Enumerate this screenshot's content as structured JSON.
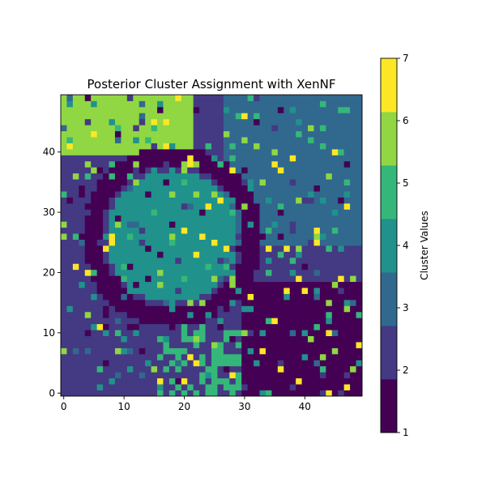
{
  "chart_data": {
    "type": "heatmap",
    "title": "Posterior Cluster Assignment with XenNF",
    "xlabel": "",
    "ylabel": "",
    "grid_size": [
      50,
      50
    ],
    "xlim": [
      -0.5,
      49.5
    ],
    "ylim": [
      -0.5,
      49.5
    ],
    "origin": "lower",
    "x_ticks": [
      0,
      10,
      20,
      30,
      40
    ],
    "y_ticks": [
      0,
      10,
      20,
      30,
      40
    ],
    "colormap": "viridis",
    "clusters": [
      1,
      2,
      3,
      4,
      5,
      6,
      7
    ],
    "cluster_colors": [
      "#440154",
      "#443983",
      "#31688e",
      "#21918c",
      "#35b779",
      "#90d743",
      "#fde725"
    ],
    "colorbar": {
      "label": "Cluster Values",
      "ticks": [
        1,
        2,
        3,
        4,
        5,
        6,
        7
      ],
      "range": [
        1,
        7
      ],
      "segments": [
        {
          "from": 1.0,
          "to": 1.857,
          "color": "#440154"
        },
        {
          "from": 1.857,
          "to": 2.714,
          "color": "#443983"
        },
        {
          "from": 2.714,
          "to": 3.571,
          "color": "#31688e"
        },
        {
          "from": 3.571,
          "to": 4.429,
          "color": "#21918c"
        },
        {
          "from": 4.429,
          "to": 5.286,
          "color": "#35b779"
        },
        {
          "from": 5.286,
          "to": 6.143,
          "color": "#90d743"
        },
        {
          "from": 6.143,
          "to": 7.0,
          "color": "#fde725"
        }
      ]
    },
    "regions": [
      {
        "name": "ring",
        "cluster": 1,
        "center": [
          18,
          26
        ],
        "inner_radius": 12,
        "outer_radius": 15
      },
      {
        "name": "disc",
        "cluster": 4,
        "center": [
          18,
          26
        ],
        "radius": 11
      },
      {
        "name": "upper-left-block",
        "cluster": 6,
        "x_range": [
          0,
          21
        ],
        "y_range": [
          40,
          49
        ]
      },
      {
        "name": "upper-right-block",
        "cluster": 3,
        "x_range": [
          27,
          49
        ],
        "y_range": [
          25,
          49
        ]
      },
      {
        "name": "lower-right-block",
        "cluster": 1,
        "x_range": [
          30,
          49
        ],
        "y_range": [
          0,
          18
        ]
      },
      {
        "name": "bottom-patch",
        "cluster": 5,
        "x_range": [
          16,
          32
        ],
        "y_range": [
          0,
          10
        ]
      },
      {
        "name": "background",
        "cluster": 2
      }
    ]
  }
}
